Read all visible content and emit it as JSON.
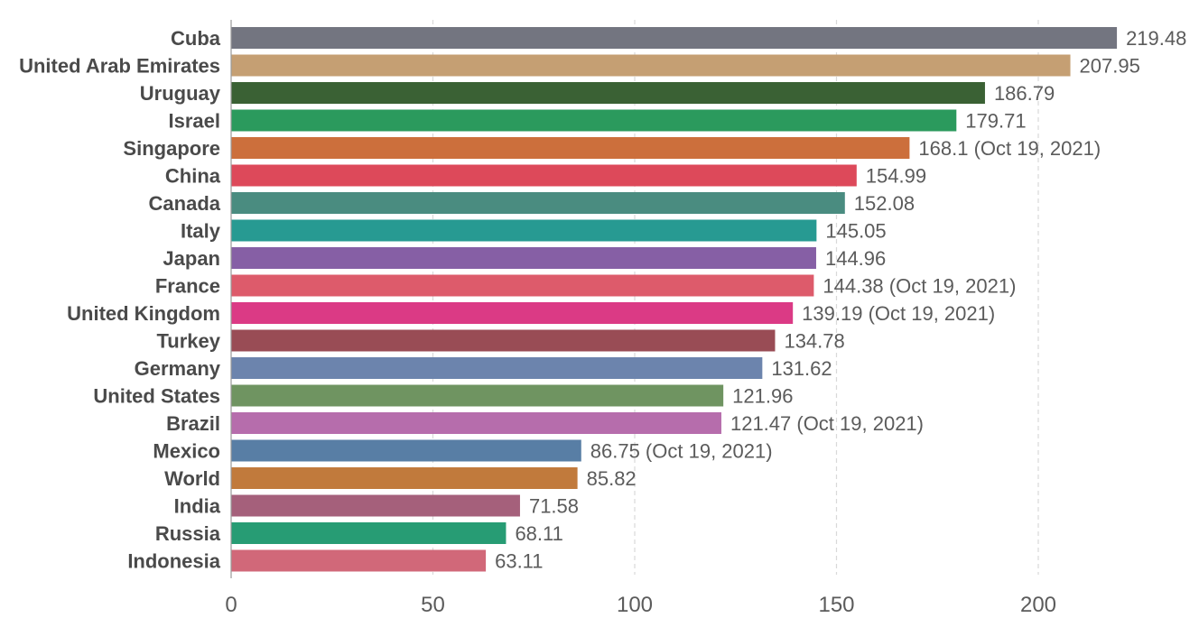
{
  "chart_data": {
    "type": "bar",
    "orientation": "horizontal",
    "title": "",
    "xlabel": "",
    "ylabel": "",
    "xlim": [
      0,
      225
    ],
    "grid": true,
    "xticks": [
      {
        "value": 0,
        "label": "0"
      },
      {
        "value": 50,
        "label": "50"
      },
      {
        "value": 100,
        "label": "100"
      },
      {
        "value": 150,
        "label": "150"
      },
      {
        "value": 200,
        "label": "200"
      }
    ],
    "bars": [
      {
        "category": "Cuba",
        "value": 219.48,
        "label": "219.48",
        "color": "#737580"
      },
      {
        "category": "United Arab Emirates",
        "value": 207.95,
        "label": "207.95",
        "color": "#c59f73"
      },
      {
        "category": "Uruguay",
        "value": 186.79,
        "label": "186.79",
        "color": "#3a6134"
      },
      {
        "category": "Israel",
        "value": 179.71,
        "label": "179.71",
        "color": "#2b9a5d"
      },
      {
        "category": "Singapore",
        "value": 168.1,
        "label": "168.1 (Oct 19, 2021)",
        "color": "#cc6f3c"
      },
      {
        "category": "China",
        "value": 154.99,
        "label": "154.99",
        "color": "#dd495a"
      },
      {
        "category": "Canada",
        "value": 152.08,
        "label": "152.08",
        "color": "#4a8c80"
      },
      {
        "category": "Italy",
        "value": 145.05,
        "label": "145.05",
        "color": "#279a92"
      },
      {
        "category": "Japan",
        "value": 144.96,
        "label": "144.96",
        "color": "#865fa5"
      },
      {
        "category": "France",
        "value": 144.38,
        "label": "144.38 (Oct 19, 2021)",
        "color": "#dd5b6b"
      },
      {
        "category": "United Kingdom",
        "value": 139.19,
        "label": "139.19 (Oct 19, 2021)",
        "color": "#db3a85"
      },
      {
        "category": "Turkey",
        "value": 134.78,
        "label": "134.78",
        "color": "#994c55"
      },
      {
        "category": "Germany",
        "value": 131.62,
        "label": "131.62",
        "color": "#6c84ad"
      },
      {
        "category": "United States",
        "value": 121.96,
        "label": "121.96",
        "color": "#6f9461"
      },
      {
        "category": "Brazil",
        "value": 121.47,
        "label": "121.47 (Oct 19, 2021)",
        "color": "#b66dac"
      },
      {
        "category": "Mexico",
        "value": 86.75,
        "label": "86.75 (Oct 19, 2021)",
        "color": "#587ea5"
      },
      {
        "category": "World",
        "value": 85.82,
        "label": "85.82",
        "color": "#c17a3c"
      },
      {
        "category": "India",
        "value": 71.58,
        "label": "71.58",
        "color": "#a5607b"
      },
      {
        "category": "Russia",
        "value": 68.11,
        "label": "68.11",
        "color": "#279c74"
      },
      {
        "category": "Indonesia",
        "value": 63.11,
        "label": "63.11",
        "color": "#d16879"
      }
    ]
  }
}
